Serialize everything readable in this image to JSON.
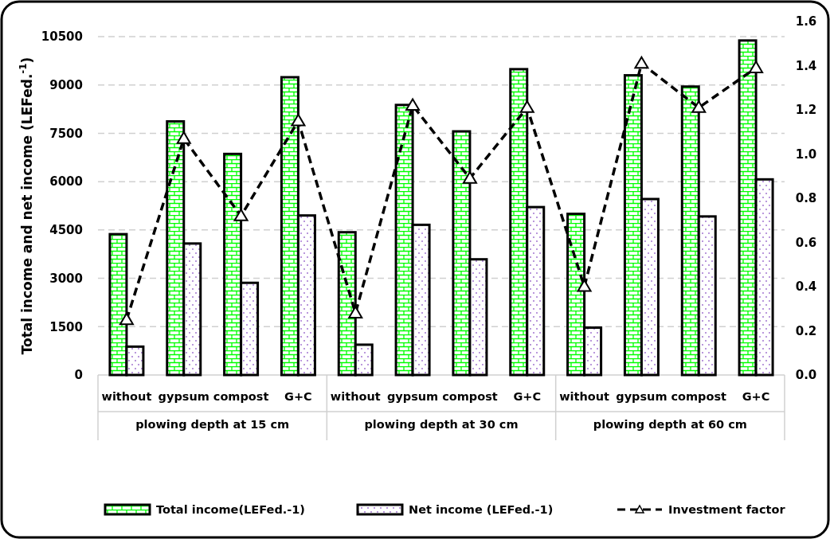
{
  "chart_data": {
    "type": "bar",
    "ylabel": "Total income and net income (LEFed.$^{-1}$)",
    "categories": [
      "without",
      "gypsum",
      "compost",
      "G+C",
      "without",
      "gypsum",
      "compost",
      "G+C",
      "without",
      "gypsum",
      "compost",
      "G+C"
    ],
    "annotations": [
      "plowing depth at 15 cm",
      "plowing depth at 30 cm",
      "plowing depth at 60 cm"
    ],
    "series": [
      {
        "name": "Total income(LEFed.-1)",
        "color": "#00ff00",
        "values": [
          4370,
          7870,
          6860,
          9240,
          4430,
          8380,
          7560,
          9490,
          5000,
          9300,
          8950,
          10380
        ]
      },
      {
        "name": "Net income (LEFed.-1)",
        "color": "#9966cc",
        "values": [
          880,
          4080,
          2860,
          4950,
          940,
          4660,
          3590,
          5210,
          1470,
          5460,
          4920,
          6070
        ]
      },
      {
        "name": "Investment factor",
        "type": "line",
        "axis": "y2",
        "color": "#000000",
        "marker": "triangle",
        "line_style": "dashed",
        "values": [
          0.25,
          1.07,
          0.72,
          1.15,
          0.28,
          1.22,
          0.89,
          1.21,
          0.4,
          1.41,
          1.21,
          1.39
        ]
      }
    ],
    "ylim": [
      0,
      10500
    ],
    "yticks": [
      0,
      1500,
      3000,
      4500,
      6000,
      7500,
      9000,
      10500
    ],
    "y2lim": [
      0,
      1.6
    ],
    "y2ticks": [
      {
        "value": 0,
        "label": "0.0"
      },
      {
        "value": 0.2,
        "label": "0.2"
      },
      {
        "value": 0.4,
        "label": "0.4"
      },
      {
        "value": 0.6,
        "label": "0.6"
      },
      {
        "value": 0.8,
        "label": "0.8"
      },
      {
        "value": 1.0,
        "label": "1.0"
      },
      {
        "value": 1.2,
        "label": "1.2"
      },
      {
        "value": 1.4,
        "label": "1.4"
      },
      {
        "value": 1.6,
        "label": "1.6"
      }
    ],
    "grid": "y",
    "legend": "bottom"
  }
}
